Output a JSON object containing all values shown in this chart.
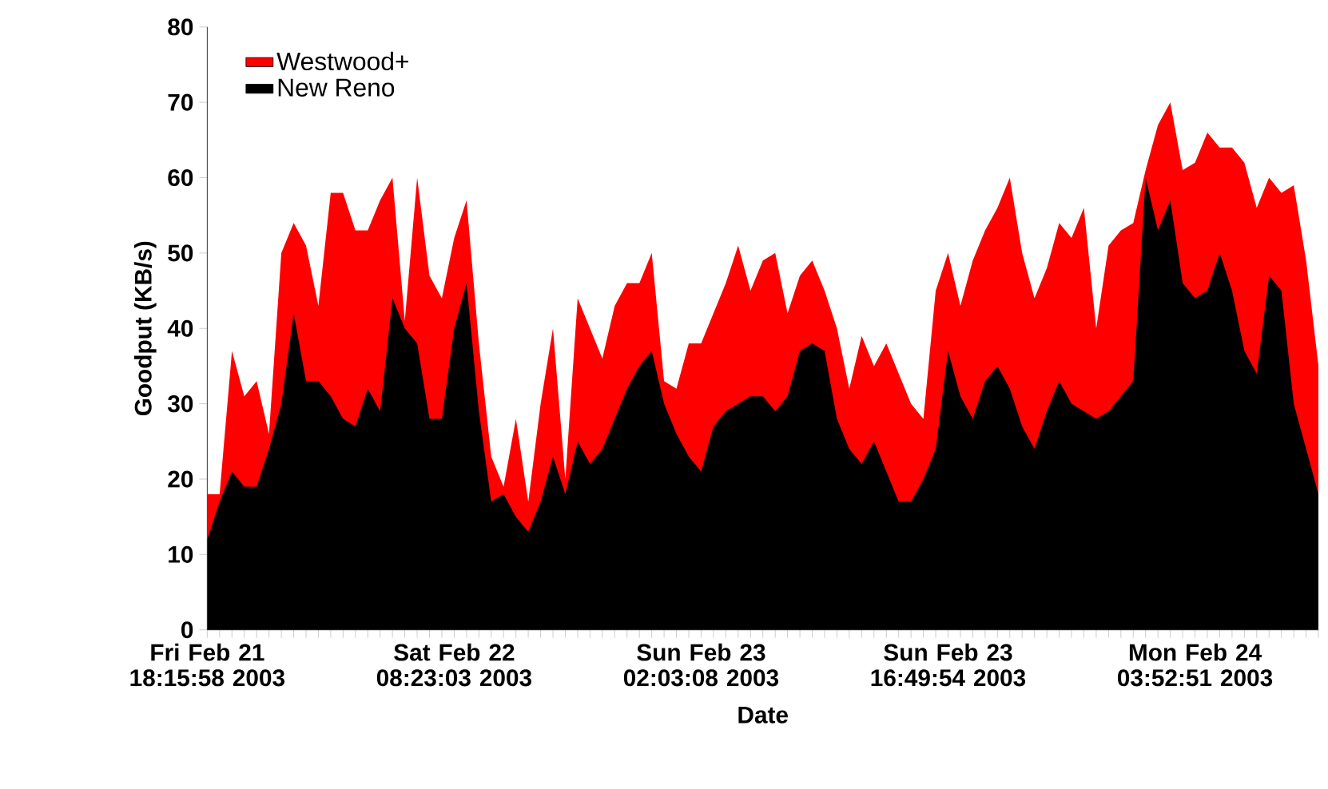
{
  "chart_data": {
    "type": "area",
    "xlabel": "Date",
    "ylabel": "Goodput (KB/s)",
    "legend": "top left",
    "categories": [
      "Fri Feb 21 18:15:58 2003",
      null,
      null,
      null,
      null,
      null,
      null,
      null,
      null,
      null,
      null,
      null,
      null,
      null,
      null,
      null,
      null,
      null,
      null,
      null,
      "Sat Feb 22 08:23:03 2003",
      null,
      null,
      null,
      null,
      null,
      null,
      null,
      null,
      null,
      null,
      null,
      null,
      null,
      null,
      null,
      null,
      null,
      null,
      null,
      "Sun Feb 23 02:03:08 2003",
      null,
      null,
      null,
      null,
      null,
      null,
      null,
      null,
      null,
      null,
      null,
      null,
      null,
      null,
      null,
      null,
      null,
      null,
      null,
      "Sun Feb 23 16:49:54 2003",
      null,
      null,
      null,
      null,
      null,
      null,
      null,
      null,
      null,
      null,
      null,
      null,
      null,
      null,
      null,
      null,
      null,
      null,
      null,
      "Mon Feb 24 03:52:51 2003",
      null,
      null,
      null,
      null,
      null,
      null,
      null,
      null,
      null,
      null
    ],
    "ylim": [
      0,
      80
    ],
    "yticks": [
      0,
      10,
      20,
      30,
      40,
      50,
      60,
      70,
      80
    ],
    "series": [
      {
        "name": "Westwood+",
        "color": "#ff0000",
        "values": [
          18,
          18,
          37,
          31,
          33,
          26,
          50,
          54,
          51,
          43,
          58,
          58,
          53,
          53,
          57,
          60,
          41,
          60,
          47,
          44,
          52,
          57,
          38,
          23,
          19,
          28,
          17,
          30,
          40,
          20,
          44,
          40,
          36,
          43,
          46,
          46,
          50,
          33,
          32,
          38,
          38,
          42,
          46,
          51,
          45,
          49,
          50,
          42,
          47,
          49,
          45,
          40,
          32,
          39,
          35,
          38,
          34,
          30,
          28,
          45,
          50,
          43,
          49,
          53,
          56,
          60,
          50,
          44,
          48,
          54,
          52,
          56,
          40,
          51,
          53,
          54,
          61,
          67,
          70,
          61,
          62,
          66,
          64,
          64,
          62,
          56,
          60,
          58,
          59,
          49,
          35
        ]
      },
      {
        "name": "New Reno",
        "color": "#000000",
        "values": [
          12,
          17,
          21,
          19,
          19,
          24,
          30,
          42,
          33,
          33,
          31,
          28,
          27,
          32,
          29,
          44,
          40,
          38,
          28,
          28,
          40,
          46,
          29,
          17,
          18,
          15,
          13,
          17,
          23,
          18,
          25,
          22,
          24,
          28,
          32,
          35,
          37,
          30,
          26,
          23,
          21,
          27,
          29,
          30,
          31,
          31,
          29,
          31,
          37,
          38,
          37,
          28,
          24,
          22,
          25,
          21,
          17,
          17,
          20,
          24,
          37,
          31,
          28,
          33,
          35,
          32,
          27,
          24,
          29,
          33,
          30,
          29,
          28,
          29,
          31,
          33,
          60,
          53,
          57,
          46,
          44,
          45,
          50,
          45,
          37,
          34,
          47,
          45,
          30,
          24,
          18
        ]
      }
    ]
  }
}
